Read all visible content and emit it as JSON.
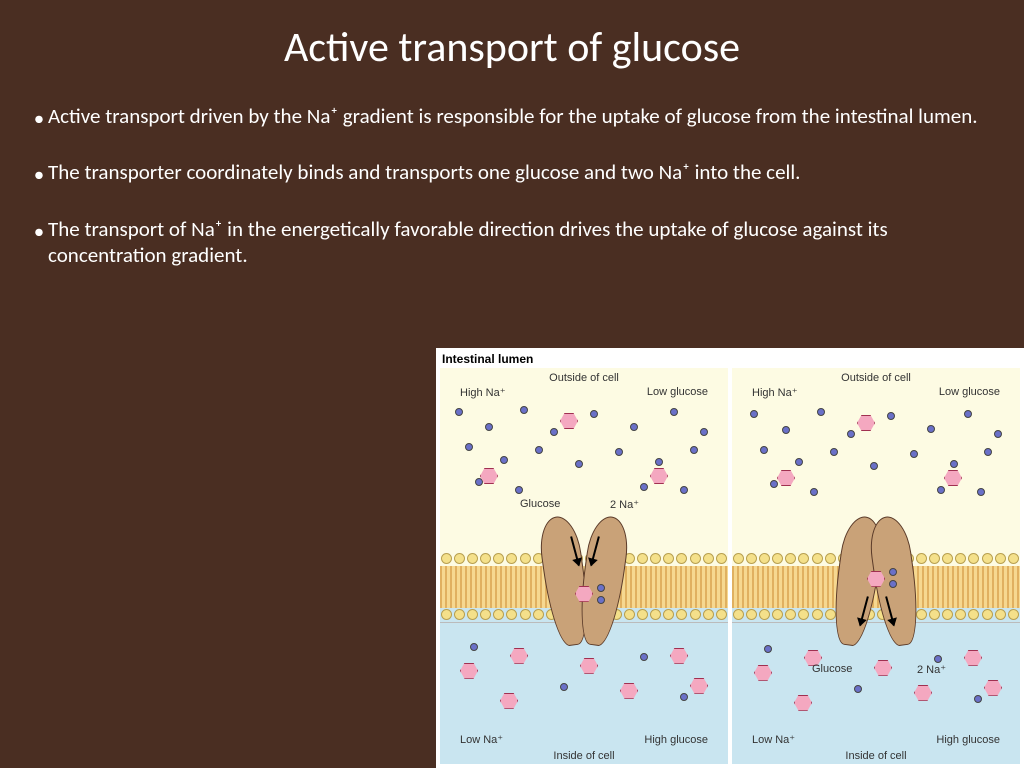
{
  "slide": {
    "title": "Active transport of glucose",
    "bullets": [
      "Active transport driven by the Na⁺ gradient is responsible for the uptake of glucose from the intestinal lumen.",
      "The transporter coordinately binds and transports one glucose and two Na⁺ into the cell.",
      "The transport of Na⁺ in the energetically favorable direction drives the uptake of glucose against its concentration gradient."
    ],
    "background_color": "#4a2e22",
    "text_color": "#ffffff",
    "title_fontsize": 42,
    "body_fontsize": 21
  },
  "diagram": {
    "caption": "Intestinal lumen",
    "type": "biology-schematic",
    "panels": [
      {
        "top_label_center": "Outside of cell",
        "top_label_left": "High Na⁺",
        "top_label_right": "Low glucose",
        "mid_label_glucose": "Glucose",
        "mid_label_na": "2 Na⁺",
        "bottom_label_left": "Low Na⁺",
        "bottom_label_right": "High glucose",
        "bottom_label_center": "Inside of cell",
        "transporter_state": "binding",
        "arrow_direction": "down_into_transporter"
      },
      {
        "top_label_center": "Outside of cell",
        "top_label_left": "High Na⁺",
        "top_label_right": "Low glucose",
        "mid_label_glucose": "Glucose",
        "mid_label_na": "2 Na⁺",
        "bottom_label_left": "Low Na⁺",
        "bottom_label_right": "High glucose",
        "bottom_label_center": "Inside of cell",
        "transporter_state": "releasing",
        "arrow_direction": "down_out_of_transporter"
      }
    ],
    "colors": {
      "outside_bg": "#fdfbe3",
      "inside_bg": "#c9e5f0",
      "phospholipid_head": "#f4e08a",
      "phospholipid_tail": "#e0b060",
      "sodium": "#6a70c8",
      "glucose": "#f4a8c0",
      "transporter": "#c9a278",
      "label_text": "#333333"
    },
    "counts": {
      "na_outside_per_panel": 22,
      "glucose_outside_per_panel": 3,
      "na_inside_per_panel": 4,
      "glucose_inside_per_panel": 7,
      "phospholipid_heads_per_row": 22
    }
  }
}
